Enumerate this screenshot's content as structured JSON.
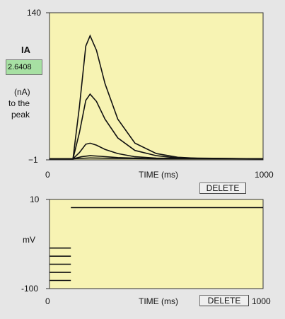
{
  "top_panel": {
    "y_max": "140",
    "y_min": "−1",
    "x_min": "0",
    "x_max": "1000",
    "x_label": "TIME (ms)",
    "delete_label": "DELETE",
    "measure_title": "IA",
    "measure_value": "2.6408",
    "measure_unit": "(nA)",
    "measure_desc_1": "to the",
    "measure_desc_2": "peak"
  },
  "bottom_panel": {
    "y_max": "10",
    "y_min": "-100",
    "y_label": "mV",
    "x_min": "0",
    "x_max": "1000",
    "x_label": "TIME (ms)",
    "delete_label": "DELETE"
  },
  "colors": {
    "plot_background": "#f7f3b3",
    "value_box": "#a7e0a3",
    "trace": "#111111"
  },
  "chart_data": [
    {
      "type": "line",
      "title": "",
      "xlabel": "TIME (ms)",
      "ylabel": "IA (nA)",
      "xlim": [
        0,
        1000
      ],
      "ylim": [
        -1,
        140
      ],
      "series": [
        {
          "values": [
            [
              0,
              0
            ],
            [
              110,
              0
            ],
            [
              140,
              50
            ],
            [
              170,
              108
            ],
            [
              190,
              118
            ],
            [
              220,
              104
            ],
            [
              260,
              72
            ],
            [
              320,
              38
            ],
            [
              400,
              15
            ],
            [
              500,
              5
            ],
            [
              600,
              1.5
            ],
            [
              700,
              0.4
            ],
            [
              1000,
              0
            ]
          ]
        },
        {
          "values": [
            [
              0,
              0
            ],
            [
              110,
              0
            ],
            [
              140,
              25
            ],
            [
              170,
              56
            ],
            [
              190,
              62
            ],
            [
              220,
              55
            ],
            [
              260,
              38
            ],
            [
              320,
              20
            ],
            [
              400,
              8
            ],
            [
              500,
              3
            ],
            [
              600,
              0.8
            ],
            [
              1000,
              0
            ]
          ]
        },
        {
          "values": [
            [
              0,
              0
            ],
            [
              110,
              0
            ],
            [
              140,
              6
            ],
            [
              170,
              14
            ],
            [
              190,
              15
            ],
            [
              220,
              13
            ],
            [
              260,
              9
            ],
            [
              320,
              5
            ],
            [
              400,
              2
            ],
            [
              500,
              0.7
            ],
            [
              1000,
              0
            ]
          ]
        },
        {
          "values": [
            [
              0,
              0
            ],
            [
              110,
              0
            ],
            [
              150,
              2
            ],
            [
              190,
              3
            ],
            [
              240,
              2.4
            ],
            [
              320,
              1.2
            ],
            [
              450,
              0.3
            ],
            [
              1000,
              0
            ]
          ]
        },
        {
          "values": [
            [
              0,
              0
            ],
            [
              110,
              0
            ],
            [
              190,
              0.8
            ],
            [
              300,
              0.4
            ],
            [
              500,
              0.1
            ],
            [
              1000,
              0
            ]
          ]
        }
      ]
    },
    {
      "type": "line",
      "title": "",
      "xlabel": "TIME (ms)",
      "ylabel": "mV",
      "xlim": [
        0,
        1000
      ],
      "ylim": [
        -100,
        10
      ],
      "series": [
        {
          "values": [
            [
              100,
              0
            ],
            [
              1000,
              0
            ]
          ]
        },
        {
          "values": [
            [
              0,
              -50
            ],
            [
              100,
              -50
            ]
          ]
        },
        {
          "values": [
            [
              0,
              -60
            ],
            [
              100,
              -60
            ]
          ]
        },
        {
          "values": [
            [
              0,
              -70
            ],
            [
              100,
              -70
            ]
          ]
        },
        {
          "values": [
            [
              0,
              -80
            ],
            [
              100,
              -80
            ]
          ]
        },
        {
          "values": [
            [
              0,
              -90
            ],
            [
              100,
              -90
            ]
          ]
        }
      ]
    }
  ]
}
